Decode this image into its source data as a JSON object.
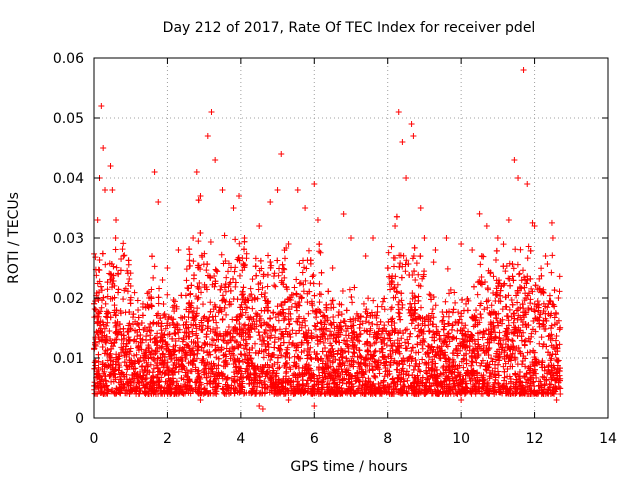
{
  "chart_data": {
    "type": "scatter",
    "title": "Day 212 of 2017, Rate Of TEC Index for receiver pdel",
    "xlabel": "GPS time / hours",
    "ylabel": "ROTI / TECUs",
    "xlim": [
      0,
      14
    ],
    "ylim": [
      0,
      0.06
    ],
    "xticks": [
      0,
      2,
      4,
      6,
      8,
      10,
      12,
      14
    ],
    "xtick_labels": [
      "0",
      "2",
      "4",
      "6",
      "8",
      "10",
      "12",
      "14"
    ],
    "yticks": [
      0,
      0.01,
      0.02,
      0.03,
      0.04,
      0.05,
      0.06
    ],
    "ytick_labels": [
      "0",
      "0.01",
      "0.02",
      "0.03",
      "0.04",
      "0.05",
      "0.06"
    ],
    "grid": true,
    "marker": "+",
    "color": "#ff0000",
    "data_x_range": [
      0,
      12.7
    ],
    "series": [
      {
        "name": "ROTI",
        "points": [
          [
            0.05,
            0.012
          ],
          [
            0.1,
            0.033
          ],
          [
            0.15,
            0.04
          ],
          [
            0.2,
            0.052
          ],
          [
            0.25,
            0.045
          ],
          [
            0.3,
            0.038
          ],
          [
            0.45,
            0.042
          ],
          [
            0.5,
            0.038
          ],
          [
            0.6,
            0.033
          ],
          [
            0.8,
            0.027
          ],
          [
            1.0,
            0.022
          ],
          [
            1.2,
            0.018
          ],
          [
            1.5,
            0.02
          ],
          [
            1.65,
            0.041
          ],
          [
            1.75,
            0.036
          ],
          [
            2.0,
            0.025
          ],
          [
            2.3,
            0.028
          ],
          [
            2.7,
            0.03
          ],
          [
            2.8,
            0.041
          ],
          [
            2.9,
            0.037
          ],
          [
            3.1,
            0.047
          ],
          [
            3.2,
            0.051
          ],
          [
            3.3,
            0.043
          ],
          [
            3.5,
            0.038
          ],
          [
            3.8,
            0.035
          ],
          [
            3.95,
            0.037
          ],
          [
            4.1,
            0.03
          ],
          [
            4.5,
            0.032
          ],
          [
            4.8,
            0.036
          ],
          [
            5.0,
            0.038
          ],
          [
            5.1,
            0.044
          ],
          [
            5.3,
            0.029
          ],
          [
            5.55,
            0.038
          ],
          [
            5.75,
            0.035
          ],
          [
            6.0,
            0.039
          ],
          [
            6.1,
            0.033
          ],
          [
            6.5,
            0.025
          ],
          [
            6.8,
            0.034
          ],
          [
            7.0,
            0.03
          ],
          [
            7.4,
            0.027
          ],
          [
            7.6,
            0.03
          ],
          [
            8.0,
            0.025
          ],
          [
            8.2,
            0.032
          ],
          [
            8.3,
            0.051
          ],
          [
            8.4,
            0.046
          ],
          [
            8.5,
            0.04
          ],
          [
            8.65,
            0.049
          ],
          [
            8.7,
            0.047
          ],
          [
            8.9,
            0.035
          ],
          [
            9.0,
            0.03
          ],
          [
            9.3,
            0.028
          ],
          [
            9.6,
            0.03
          ],
          [
            10.0,
            0.029
          ],
          [
            10.3,
            0.028
          ],
          [
            10.7,
            0.032
          ],
          [
            11.0,
            0.03
          ],
          [
            11.3,
            0.033
          ],
          [
            11.45,
            0.043
          ],
          [
            11.55,
            0.04
          ],
          [
            11.7,
            0.058
          ],
          [
            11.8,
            0.039
          ],
          [
            12.0,
            0.032
          ],
          [
            12.3,
            0.027
          ],
          [
            12.5,
            0.03
          ],
          [
            12.65,
            0.02
          ],
          [
            0.3,
            0.004
          ],
          [
            1.4,
            0.004
          ],
          [
            2.2,
            0.004
          ],
          [
            2.9,
            0.003
          ],
          [
            3.6,
            0.004
          ],
          [
            4.5,
            0.002
          ],
          [
            4.6,
            0.0015
          ],
          [
            5.3,
            0.003
          ],
          [
            6.0,
            0.002
          ],
          [
            6.3,
            0.004
          ],
          [
            7.0,
            0.004
          ],
          [
            8.1,
            0.004
          ],
          [
            9.0,
            0.004
          ],
          [
            9.9,
            0.004
          ],
          [
            10.0,
            0.003
          ],
          [
            10.9,
            0.004
          ],
          [
            11.8,
            0.004
          ],
          [
            12.6,
            0.003
          ],
          [
            12.7,
            0.004
          ]
        ]
      }
    ]
  }
}
